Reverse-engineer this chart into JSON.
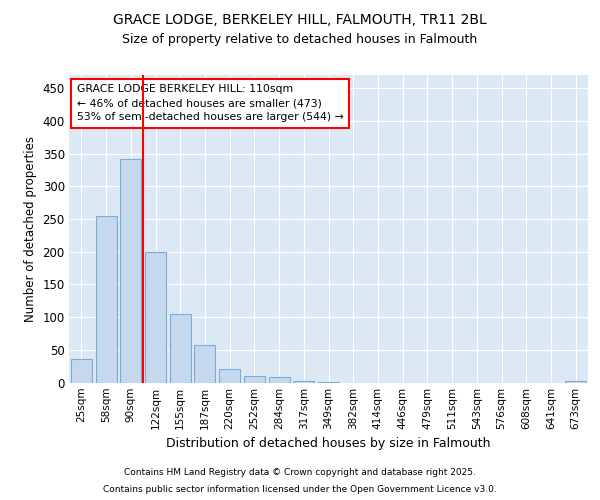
{
  "title1": "GRACE LODGE, BERKELEY HILL, FALMOUTH, TR11 2BL",
  "title2": "Size of property relative to detached houses in Falmouth",
  "xlabel": "Distribution of detached houses by size in Falmouth",
  "ylabel": "Number of detached properties",
  "categories": [
    "25sqm",
    "58sqm",
    "90sqm",
    "122sqm",
    "155sqm",
    "187sqm",
    "220sqm",
    "252sqm",
    "284sqm",
    "317sqm",
    "349sqm",
    "382sqm",
    "414sqm",
    "446sqm",
    "479sqm",
    "511sqm",
    "543sqm",
    "576sqm",
    "608sqm",
    "641sqm",
    "673sqm"
  ],
  "values": [
    36,
    255,
    342,
    199,
    105,
    57,
    20,
    10,
    8,
    3,
    1,
    0,
    0,
    0,
    0,
    0,
    0,
    0,
    0,
    0,
    2
  ],
  "bar_color": "#c5d8ee",
  "bar_edgecolor": "#7aadd4",
  "vline_x_index": 2,
  "vline_color": "red",
  "annotation_title": "GRACE LODGE BERKELEY HILL: 110sqm",
  "annotation_line1": "← 46% of detached houses are smaller (473)",
  "annotation_line2": "53% of semi-detached houses are larger (544) →",
  "annotation_box_facecolor": "white",
  "annotation_box_edgecolor": "red",
  "ylim": [
    0,
    470
  ],
  "yticks": [
    0,
    50,
    100,
    150,
    200,
    250,
    300,
    350,
    400,
    450
  ],
  "background_color": "#dce9f5",
  "grid_color": "white",
  "footer1": "Contains HM Land Registry data © Crown copyright and database right 2025.",
  "footer2": "Contains public sector information licensed under the Open Government Licence v3.0."
}
